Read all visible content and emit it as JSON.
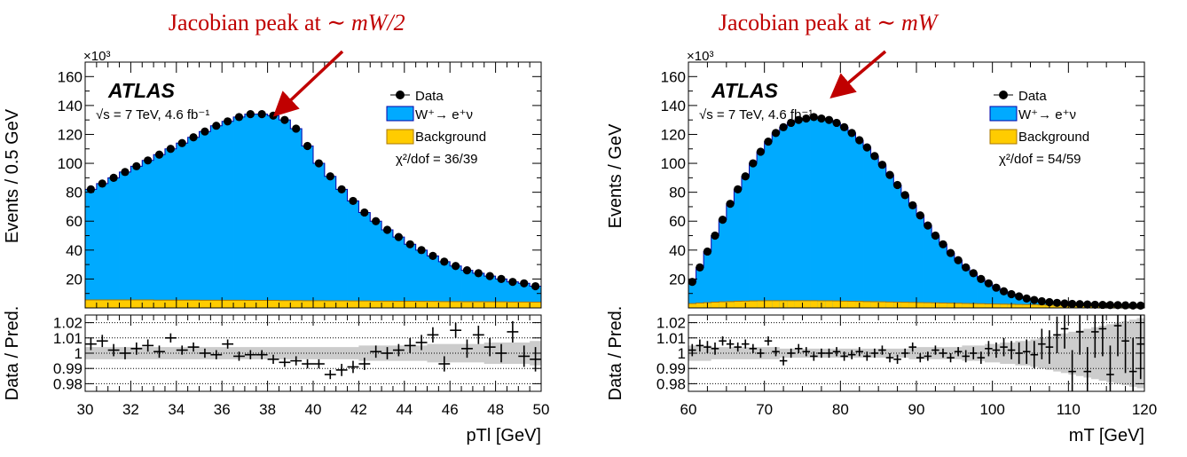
{
  "colors": {
    "signal": "#00aaff",
    "background": "#ffcc00",
    "data": "#000000",
    "band": "#cccccc",
    "annotation": "#c00000"
  },
  "chart_data": [
    {
      "type": "bar",
      "annotation": "Jacobian peak at ∼",
      "annotation_math": "mW/2",
      "experiment": "ATLAS",
      "energy_text": "√s = 7 TeV, 4.6 fb⁻¹",
      "chi2_text": "χ²/dof = 36/39",
      "exponent_label": "×10³",
      "ylabel": "Events / 0.5 GeV",
      "ratio_ylabel": "Data / Pred.",
      "xlabel": "pTl [GeV]",
      "xlim": [
        30,
        50
      ],
      "ylim": [
        0,
        170
      ],
      "yticks": [
        20,
        40,
        60,
        80,
        100,
        120,
        140,
        160
      ],
      "xticks": [
        30,
        32,
        34,
        36,
        38,
        40,
        42,
        44,
        46,
        48,
        50
      ],
      "ratio_ylim": [
        0.975,
        1.025
      ],
      "ratio_yticks": [
        "0.98",
        "0.99",
        "1",
        "1.01",
        "1.02"
      ],
      "legend": [
        "Data",
        "W⁺→ e⁺ν",
        "Background"
      ],
      "bin_width": 0.5,
      "x": [
        30.25,
        30.75,
        31.25,
        31.75,
        32.25,
        32.75,
        33.25,
        33.75,
        34.25,
        34.75,
        35.25,
        35.75,
        36.25,
        36.75,
        37.25,
        37.75,
        38.25,
        38.75,
        39.25,
        39.75,
        40.25,
        40.75,
        41.25,
        41.75,
        42.25,
        42.75,
        43.25,
        43.75,
        44.25,
        44.75,
        45.25,
        45.75,
        46.25,
        46.75,
        47.25,
        47.75,
        48.25,
        48.75,
        49.25,
        49.75
      ],
      "data": [
        82,
        86,
        90,
        94,
        98,
        102,
        106,
        110,
        114,
        118,
        122,
        126,
        129,
        132,
        134,
        134,
        133,
        130,
        124,
        112,
        100,
        91,
        82,
        74,
        66,
        60,
        54,
        49,
        44,
        40,
        36,
        32,
        29,
        26,
        24,
        22,
        20,
        18,
        17,
        15
      ],
      "background": [
        5.5,
        5.5,
        5.5,
        5.5,
        5.5,
        5.5,
        5.4,
        5.4,
        5.4,
        5.4,
        5.3,
        5.3,
        5.3,
        5.3,
        5.2,
        5.2,
        5.2,
        5.1,
        5.1,
        5.0,
        5.0,
        4.9,
        4.9,
        4.8,
        4.8,
        4.7,
        4.7,
        4.6,
        4.6,
        4.5,
        4.5,
        4.4,
        4.4,
        4.3,
        4.3,
        4.2,
        4.2,
        4.1,
        4.1,
        4.0
      ],
      "ratio": [
        1.006,
        1.008,
        1.002,
        1.0,
        1.003,
        1.005,
        1.001,
        1.01,
        1.002,
        1.004,
        1.0,
        0.999,
        1.006,
        0.998,
        0.999,
        0.999,
        0.996,
        0.994,
        0.995,
        0.993,
        0.993,
        0.986,
        0.989,
        0.991,
        0.993,
        1.001,
        1.0,
        1.002,
        1.005,
        1.007,
        1.012,
        0.993,
        1.015,
        1.003,
        1.012,
        1.004,
        1.0,
        1.014,
        0.998,
        0.996
      ],
      "ratio_err": [
        0.004,
        0.004,
        0.004,
        0.004,
        0.004,
        0.004,
        0.004,
        0.003,
        0.003,
        0.003,
        0.003,
        0.003,
        0.003,
        0.003,
        0.003,
        0.003,
        0.003,
        0.003,
        0.003,
        0.003,
        0.003,
        0.003,
        0.004,
        0.004,
        0.004,
        0.004,
        0.004,
        0.004,
        0.005,
        0.005,
        0.005,
        0.005,
        0.005,
        0.006,
        0.006,
        0.006,
        0.006,
        0.007,
        0.007,
        0.008
      ],
      "band": [
        0.004,
        0.004,
        0.004,
        0.004,
        0.004,
        0.004,
        0.004,
        0.004,
        0.004,
        0.004,
        0.004,
        0.004,
        0.004,
        0.004,
        0.004,
        0.004,
        0.004,
        0.004,
        0.004,
        0.004,
        0.004,
        0.004,
        0.004,
        0.004,
        0.005,
        0.005,
        0.005,
        0.005,
        0.005,
        0.005,
        0.006,
        0.006,
        0.006,
        0.006,
        0.006,
        0.007,
        0.007,
        0.007,
        0.007,
        0.008
      ]
    },
    {
      "type": "bar",
      "annotation": "Jacobian peak at ∼",
      "annotation_math": "mW",
      "experiment": "ATLAS",
      "energy_text": "√s = 7 TeV, 4.6 fb⁻¹",
      "chi2_text": "χ²/dof = 54/59",
      "exponent_label": "×10³",
      "ylabel": "Events /  GeV",
      "ratio_ylabel": "Data / Pred.",
      "xlabel": "mT [GeV]",
      "xlim": [
        60,
        120
      ],
      "ylim": [
        0,
        170
      ],
      "yticks": [
        20,
        40,
        60,
        80,
        100,
        120,
        140,
        160
      ],
      "xticks": [
        60,
        70,
        80,
        90,
        100,
        110,
        120
      ],
      "ratio_ylim": [
        0.975,
        1.025
      ],
      "ratio_yticks": [
        "0.98",
        "0.99",
        "1",
        "1.01",
        "1.02"
      ],
      "legend": [
        "Data",
        "W⁺→ e⁺ν",
        "Background"
      ],
      "bin_width": 1,
      "x": [
        60.5,
        61.5,
        62.5,
        63.5,
        64.5,
        65.5,
        66.5,
        67.5,
        68.5,
        69.5,
        70.5,
        71.5,
        72.5,
        73.5,
        74.5,
        75.5,
        76.5,
        77.5,
        78.5,
        79.5,
        80.5,
        81.5,
        82.5,
        83.5,
        84.5,
        85.5,
        86.5,
        87.5,
        88.5,
        89.5,
        90.5,
        91.5,
        92.5,
        93.5,
        94.5,
        95.5,
        96.5,
        97.5,
        98.5,
        99.5,
        100.5,
        101.5,
        102.5,
        103.5,
        104.5,
        105.5,
        106.5,
        107.5,
        108.5,
        109.5,
        110.5,
        111.5,
        112.5,
        113.5,
        114.5,
        115.5,
        116.5,
        117.5,
        118.5,
        119.5
      ],
      "data": [
        18,
        28,
        39,
        50,
        61,
        72,
        82,
        91,
        100,
        108,
        115,
        121,
        125,
        128,
        130,
        131,
        132,
        131,
        130,
        128,
        125,
        121,
        116,
        111,
        105,
        99,
        92,
        85,
        78,
        71,
        64,
        57,
        50,
        44,
        38,
        33,
        28,
        24,
        20,
        17,
        14,
        11.5,
        9.5,
        8,
        6.5,
        5.5,
        4.6,
        4,
        3.5,
        3.1,
        2.8,
        2.6,
        2.4,
        2.2,
        2.1,
        2,
        1.9,
        1.8,
        1.7,
        1.6
      ],
      "background": [
        3,
        3.4,
        3.7,
        4,
        4.2,
        4.4,
        4.6,
        4.7,
        4.8,
        4.9,
        5,
        5,
        5,
        5,
        5,
        5,
        5,
        4.9,
        4.9,
        4.8,
        4.7,
        4.6,
        4.5,
        4.4,
        4.3,
        4.2,
        4.1,
        4,
        3.9,
        3.8,
        3.7,
        3.6,
        3.5,
        3.4,
        3.3,
        3.2,
        3.1,
        3,
        2.9,
        2.8,
        2.7,
        2.6,
        2.5,
        2.4,
        2.3,
        2.2,
        2.1,
        2,
        1.9,
        1.8,
        1.7,
        1.6,
        1.5,
        1.4,
        1.3,
        1.2,
        1.1,
        1,
        0.9,
        0.8
      ],
      "ratio": [
        1.002,
        1.005,
        1.004,
        1.003,
        1.008,
        1.006,
        1.004,
        1.006,
        1.003,
        1.0,
        1.008,
        1.001,
        0.995,
        1.0,
        1.003,
        1.001,
        0.998,
        1.0,
        1.0,
        1.001,
        0.998,
        0.999,
        1.001,
        0.998,
        1.0,
        1.002,
        0.997,
        0.996,
        1.0,
        1.004,
        0.997,
        0.998,
        1.002,
        1.0,
        0.997,
        1.001,
        0.998,
        1.0,
        0.997,
        1.003,
        1.002,
        1.004,
        1.002,
        1.0,
        1.001,
        0.999,
        1.006,
        1.004,
        1.012,
        1.016,
        0.988,
        1.014,
        0.988,
        1.014,
        1.016,
        0.986,
        1.018,
        1.008,
        0.988,
        1.006
      ],
      "ratio_err": [
        0.004,
        0.004,
        0.004,
        0.004,
        0.003,
        0.003,
        0.003,
        0.003,
        0.003,
        0.003,
        0.003,
        0.003,
        0.003,
        0.003,
        0.003,
        0.003,
        0.003,
        0.003,
        0.003,
        0.003,
        0.003,
        0.003,
        0.003,
        0.003,
        0.003,
        0.003,
        0.003,
        0.003,
        0.003,
        0.003,
        0.003,
        0.003,
        0.003,
        0.003,
        0.003,
        0.003,
        0.004,
        0.004,
        0.004,
        0.005,
        0.005,
        0.006,
        0.006,
        0.007,
        0.008,
        0.009,
        0.01,
        0.011,
        0.012,
        0.013,
        0.014,
        0.015,
        0.016,
        0.017,
        0.018,
        0.019,
        0.02,
        0.021,
        0.022,
        0.023
      ],
      "band": [
        0.005,
        0.005,
        0.005,
        0.004,
        0.004,
        0.004,
        0.004,
        0.004,
        0.004,
        0.004,
        0.004,
        0.004,
        0.003,
        0.003,
        0.003,
        0.003,
        0.003,
        0.003,
        0.003,
        0.003,
        0.003,
        0.003,
        0.003,
        0.003,
        0.003,
        0.003,
        0.003,
        0.003,
        0.003,
        0.004,
        0.004,
        0.004,
        0.004,
        0.004,
        0.004,
        0.004,
        0.005,
        0.005,
        0.005,
        0.006,
        0.006,
        0.007,
        0.007,
        0.008,
        0.008,
        0.009,
        0.01,
        0.011,
        0.012,
        0.013,
        0.014,
        0.015,
        0.016,
        0.017,
        0.018,
        0.019,
        0.02,
        0.021,
        0.022,
        0.023
      ]
    }
  ]
}
